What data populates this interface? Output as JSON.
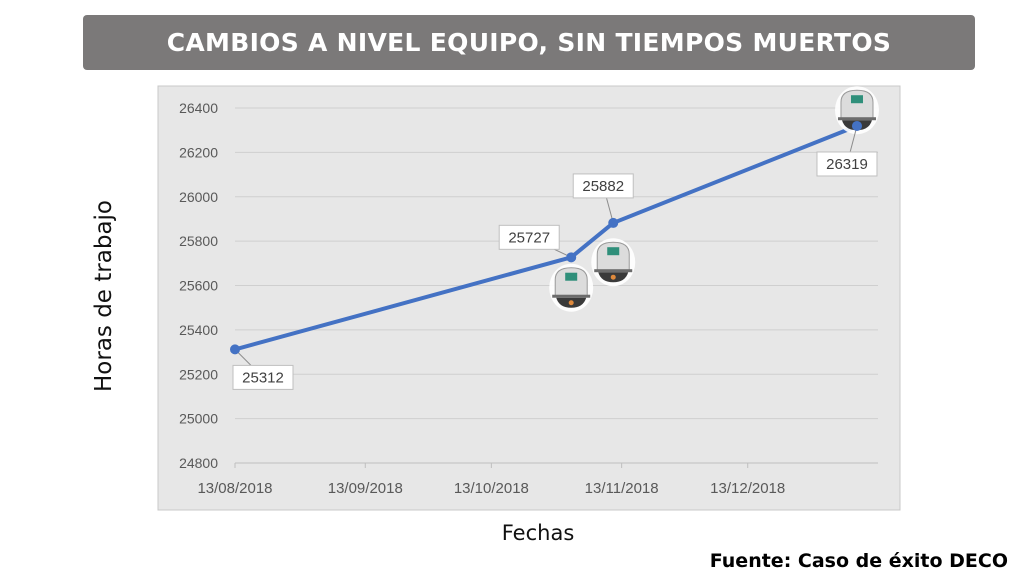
{
  "header": {
    "title": "CAMBIOS A NIVEL EQUIPO, SIN TIEMPOS MUERTOS"
  },
  "footer": {
    "source": "Fuente: Caso de éxito DECO"
  },
  "colors": {
    "banner": "#7b7979",
    "line": "#4472c4",
    "plot_bg": "#e7e7e7"
  },
  "chart_data": {
    "type": "line",
    "title": "",
    "xlabel": "Fechas",
    "ylabel": "Horas de trabajo",
    "x_tick_labels": [
      "13/08/2018",
      "13/09/2018",
      "13/10/2018",
      "13/11/2018",
      "13/12/2018"
    ],
    "y_ticks": [
      24800,
      25000,
      25200,
      25400,
      25600,
      25800,
      26000,
      26200,
      26400
    ],
    "ylim": [
      24800,
      26400
    ],
    "xlim": [
      "2018-08-13",
      "2019-01-13"
    ],
    "grid": true,
    "legend": "none",
    "points": [
      {
        "x": "2018-08-13",
        "y": 25312,
        "label": "25312"
      },
      {
        "x": "2018-11-01",
        "y": 25727,
        "label": "25727"
      },
      {
        "x": "2018-11-11",
        "y": 25882,
        "label": "25882"
      },
      {
        "x": "2019-01-08",
        "y": 26319,
        "label": "26319"
      }
    ],
    "annotations": [
      {
        "icon": "equipment-icon",
        "x": "2018-11-01",
        "y": 25590
      },
      {
        "icon": "equipment-icon",
        "x": "2018-11-11",
        "y": 25705
      },
      {
        "icon": "equipment-icon",
        "x": "2019-01-08",
        "y": 26390
      }
    ]
  }
}
